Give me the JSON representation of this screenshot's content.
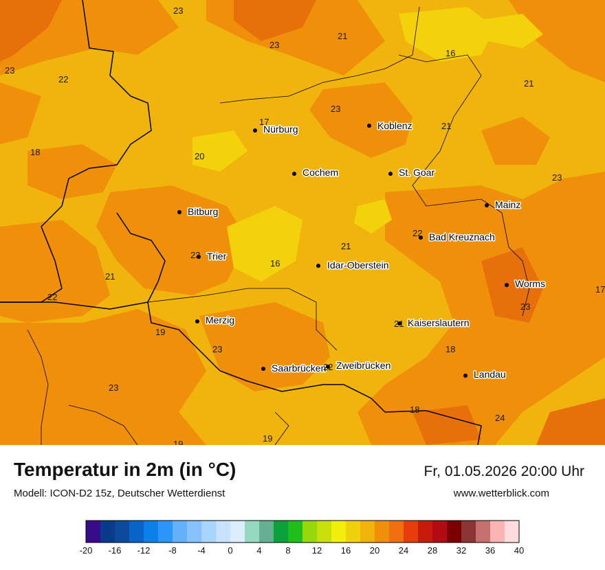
{
  "map": {
    "cities": [
      {
        "name": "Nürburg"
      },
      {
        "name": "Koblenz"
      },
      {
        "name": "Cochem"
      },
      {
        "name": "St. Goar"
      },
      {
        "name": "Bitburg"
      },
      {
        "name": "Mainz"
      },
      {
        "name": "Bad Kreuznach"
      },
      {
        "name": "Trier"
      },
      {
        "name": "Idar-Oberstein"
      },
      {
        "name": "Worms"
      },
      {
        "name": "Merzig"
      },
      {
        "name": "Kaiserslautern"
      },
      {
        "name": "Saarbrücken"
      },
      {
        "name": "Zweibrücken"
      },
      {
        "name": "Landau"
      }
    ],
    "temperatures": [
      "23",
      "21",
      "23",
      "16",
      "23",
      "22",
      "21",
      "17",
      "23",
      "21",
      "18",
      "20",
      "23",
      "22",
      "23",
      "21",
      "16",
      "21",
      "17",
      "22",
      "23",
      "19",
      "23",
      "18",
      "23",
      "22",
      "18",
      "24",
      "19",
      "19",
      "21"
    ],
    "colors": {
      "light_orange": "#f0b40c",
      "orange": "#f0900a",
      "dark_orange": "#e8700a",
      "yellow": "#f3d20c"
    }
  },
  "footer": {
    "title": "Temperatur in 2m (in °C)",
    "subtitle": "Modell: ICON-D2 15z, Deutscher Wetterdienst",
    "datetime": "Fr, 01.05.2026 20:00 Uhr",
    "site": "www.wetterblick.com"
  },
  "legend": {
    "ticks": [
      "-20",
      "-16",
      "-12",
      "-8",
      "-4",
      "0",
      "4",
      "8",
      "12",
      "16",
      "20",
      "24",
      "28",
      "32",
      "36",
      "40"
    ],
    "colors": [
      "#3a0a8c",
      "#0a3a8a",
      "#0c4a9c",
      "#0a64c8",
      "#0a80e8",
      "#2a96f8",
      "#64b2fa",
      "#86c2fc",
      "#a6d4fc",
      "#c6e2fc",
      "#dceefc",
      "#96d8c0",
      "#64b090",
      "#0aa03a",
      "#20be1a",
      "#96d80a",
      "#c8e00a",
      "#f0f00a",
      "#f0d20a",
      "#f0b40a",
      "#f0900a",
      "#f07010",
      "#e83c0a",
      "#c81a0a",
      "#b40a14",
      "#7a0000",
      "#8a3434",
      "#c47070",
      "#fab4b4",
      "#fcdcdc"
    ]
  }
}
